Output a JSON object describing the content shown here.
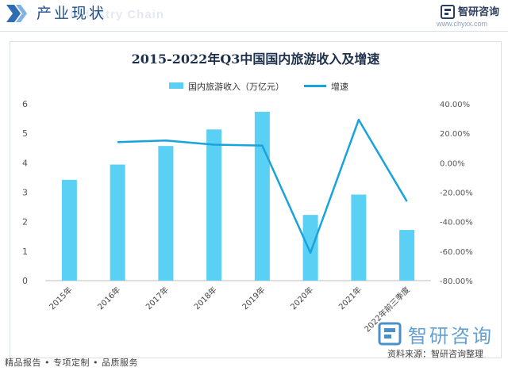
{
  "header": {
    "section_title": "产业现状",
    "ghost_text": "Industry Chain",
    "brand_name": "智研咨询",
    "brand_url": "www.chyxx.com"
  },
  "footer": {
    "left_text": "精品报告 • 专项定制 • 品质服务",
    "source_text": "资料来源：智研咨询整理",
    "watermark_brand": "智研咨询"
  },
  "colors": {
    "bar": "#5bd0f5",
    "line": "#18a3dc",
    "title": "#1c2f4a",
    "header_blue": "#1f4f8f"
  },
  "chart_data": {
    "type": "bar",
    "title": "2015-2022年Q3中国国内旅游收入及增速",
    "categories": [
      "2015年",
      "2016年",
      "2017年",
      "2018年",
      "2019年",
      "2020年",
      "2021年",
      "2022年前三季度"
    ],
    "series": [
      {
        "name": "国内旅游收入（万亿元）",
        "type": "bar",
        "axis": "left",
        "values": [
          3.42,
          3.94,
          4.57,
          5.13,
          5.73,
          2.23,
          2.92,
          1.72
        ]
      },
      {
        "name": "增速",
        "type": "line",
        "axis": "right",
        "values": [
          null,
          14.0,
          15.1,
          12.3,
          11.7,
          -61.1,
          29.2,
          -26.2
        ]
      }
    ],
    "y_left": {
      "min": 0,
      "max": 6,
      "ticks": [
        "0",
        "1",
        "2",
        "3",
        "4",
        "5",
        "6"
      ]
    },
    "y_right": {
      "min": -80,
      "max": 40,
      "ticks": [
        "-80.00%",
        "-60.00%",
        "-40.00%",
        "-20.00%",
        "0.00%",
        "20.00%",
        "40.00%"
      ]
    },
    "grid": false,
    "legend_position": "top"
  }
}
